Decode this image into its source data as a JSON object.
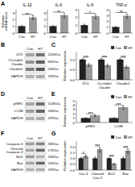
{
  "chart_data": [
    {
      "type": "bar",
      "panel_label": "A",
      "title": "IL-1β",
      "ylabel": "Relative\nmRNA level",
      "categories": [
        "Con",
        "HT"
      ],
      "values": [
        1.0,
        2.3
      ],
      "errors": [
        0.12,
        0.28
      ],
      "colors": [
        "#222222",
        "#999999"
      ],
      "ylim": [
        0,
        3.5
      ],
      "yticks": [
        0,
        1,
        2,
        3
      ],
      "annotations": [
        "**"
      ]
    },
    {
      "type": "bar",
      "title": "IL-6",
      "categories": [
        "Con",
        "HT"
      ],
      "values": [
        1.0,
        2.6
      ],
      "errors": [
        0.1,
        0.32
      ],
      "colors": [
        "#222222",
        "#999999"
      ],
      "ylim": [
        0,
        3.5
      ],
      "yticks": [
        0,
        1,
        2,
        3
      ],
      "annotations": [
        "**"
      ]
    },
    {
      "type": "bar",
      "title": "IL-8",
      "categories": [
        "Con",
        "HT"
      ],
      "values": [
        1.0,
        2.1
      ],
      "errors": [
        0.13,
        0.25
      ],
      "colors": [
        "#222222",
        "#999999"
      ],
      "ylim": [
        0,
        3.0
      ],
      "yticks": [
        0,
        1,
        2,
        3
      ],
      "annotations": [
        "*"
      ]
    },
    {
      "type": "bar",
      "title": "TNF-α",
      "categories": [
        "Con",
        "HT"
      ],
      "values": [
        1.0,
        2.9
      ],
      "errors": [
        0.09,
        0.38
      ],
      "colors": [
        "#222222",
        "#999999"
      ],
      "ylim": [
        0,
        4.0
      ],
      "yticks": [
        0,
        1,
        2,
        3,
        4
      ],
      "annotations": [
        "**"
      ]
    },
    {
      "type": "western_blot",
      "panel_label": "B",
      "categories": [
        "ZO1",
        "Occludin/\nClaudin",
        "Claudin1",
        "GAPDH"
      ],
      "right_labels": [
        "220KDa",
        "65KDa",
        "25KDa",
        "37KDa"
      ],
      "series": [
        {
          "name": "Con",
          "values": [
            0.35,
            0.42,
            0.5,
            0.3
          ]
        },
        {
          "name": "HT",
          "values": [
            0.55,
            0.62,
            0.65,
            0.32
          ]
        }
      ]
    },
    {
      "type": "bar",
      "panel_label": "C",
      "ylabel": "Relative expression",
      "categories": [
        "ZO1",
        "Occludin/\nClaudin",
        "Claudin1"
      ],
      "series": [
        {
          "name": "Con",
          "color": "#222222",
          "values": [
            1.0,
            1.0,
            1.0
          ],
          "errors": [
            0.05,
            0.06,
            0.05
          ]
        },
        {
          "name": "HT",
          "color": "#999999",
          "values": [
            0.73,
            0.7,
            0.63
          ],
          "errors": [
            0.07,
            0.07,
            0.06
          ]
        }
      ],
      "ylim": [
        0.0,
        1.4
      ],
      "yticks": [
        {
          "value": 0.0,
          "label": "0.0"
        },
        0.5,
        {
          "value": 1.0,
          "label": "1.0"
        }
      ],
      "annotations": [
        "***",
        "***",
        "***"
      ],
      "legend": "upper right"
    },
    {
      "type": "western_blot",
      "panel_label": "D",
      "categories": [
        "pIRE1",
        "LC3B",
        "GAPDH"
      ],
      "right_labels": [
        "110KDa",
        "16KDa",
        "37KDa"
      ],
      "series": [
        {
          "name": "Con",
          "values": [
            0.35,
            0.38,
            0.3
          ]
        },
        {
          "name": "HT",
          "values": [
            0.55,
            0.6,
            0.32
          ]
        }
      ]
    },
    {
      "type": "bar",
      "panel_label": "E",
      "ylabel": "Relative expression",
      "categories": [
        "pIRE1",
        "LC3B"
      ],
      "series": [
        {
          "name": "Con",
          "color": "#222222",
          "values": [
            1.0,
            1.0
          ],
          "errors": [
            0.08,
            0.1
          ]
        },
        {
          "name": "HT",
          "color": "#999999",
          "values": [
            1.55,
            3.4
          ],
          "errors": [
            0.18,
            0.38
          ]
        }
      ],
      "ylim": [
        0.0,
        5.0
      ],
      "yticks": [
        0,
        1,
        2,
        3,
        4,
        5
      ],
      "annotations": [
        "***",
        "***"
      ],
      "legend": "upper right"
    },
    {
      "type": "western_blot",
      "panel_label": "F",
      "categories": [
        "Caspase-3",
        "Cleaved\nCaspase-3",
        "Bcl2",
        "Bax",
        "GAPDH"
      ],
      "right_labels": [
        "35KDa",
        "17KDa",
        "26KDa",
        "21KDa",
        "37KDa"
      ],
      "series": [
        {
          "name": "Con",
          "values": [
            0.38,
            0.35,
            0.4,
            0.35,
            0.3
          ]
        },
        {
          "name": "HT",
          "values": [
            0.48,
            0.6,
            0.3,
            0.58,
            0.32
          ]
        }
      ]
    },
    {
      "type": "bar",
      "panel_label": "G",
      "ylabel": "Relative expression",
      "categories": [
        "Cas-3",
        "Cleaved\nCas-3",
        "Bcl2",
        "Bax"
      ],
      "series": [
        {
          "name": "Con",
          "color": "#222222",
          "values": [
            1.0,
            1.0,
            1.0,
            1.0
          ],
          "errors": [
            0.08,
            0.12,
            0.06,
            0.14
          ]
        },
        {
          "name": "HT",
          "color": "#999999",
          "values": [
            1.18,
            1.75,
            0.52,
            1.65
          ],
          "errors": [
            0.12,
            0.2,
            0.07,
            0.18
          ]
        }
      ],
      "ylim": [
        0.0,
        2.5
      ],
      "yticks": [
        {
          "value": 0.0,
          "label": "0.0"
        },
        0.5,
        {
          "value": 1.0,
          "label": "1.0"
        },
        1.5,
        {
          "value": 2.0,
          "label": "2.0"
        }
      ],
      "annotations": [
        "*",
        "***",
        "***",
        "***"
      ],
      "legend": "upper right"
    }
  ]
}
